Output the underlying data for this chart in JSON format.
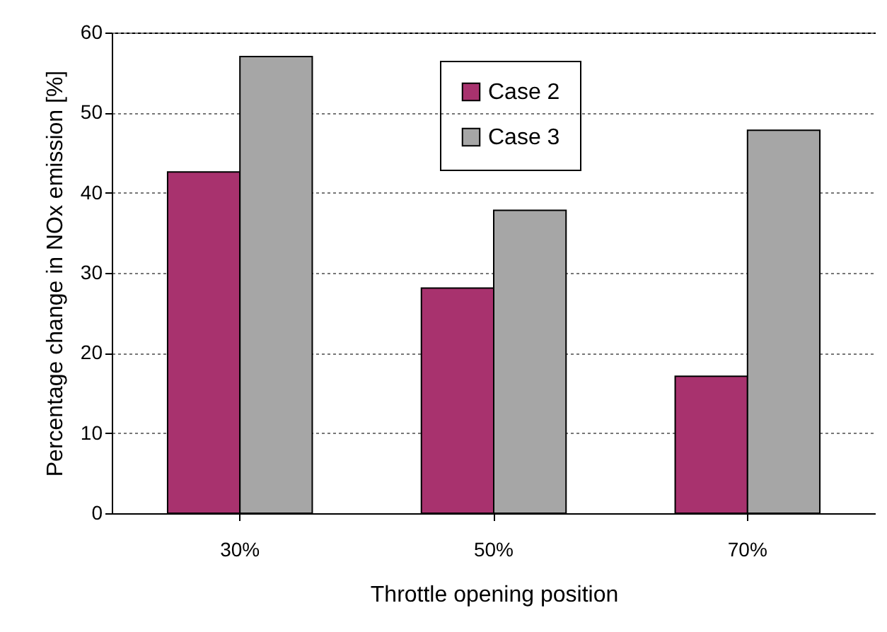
{
  "chart_data": {
    "type": "bar",
    "xlabel": "Throttle opening position",
    "ylabel": "Percentage change in NOx emission [%]",
    "categories": [
      "30%",
      "50%",
      "70%"
    ],
    "series": [
      {
        "name": "Case 2",
        "color": "#a8326e",
        "values": [
          42.6,
          28.1,
          17.1
        ]
      },
      {
        "name": "Case 3",
        "color": "#a6a6a6",
        "values": [
          57.0,
          37.8,
          47.8
        ]
      }
    ],
    "ylim": [
      0,
      60
    ],
    "yticks": [
      0,
      10,
      20,
      30,
      40,
      50,
      60
    ],
    "grid": "y",
    "legend": "top"
  }
}
